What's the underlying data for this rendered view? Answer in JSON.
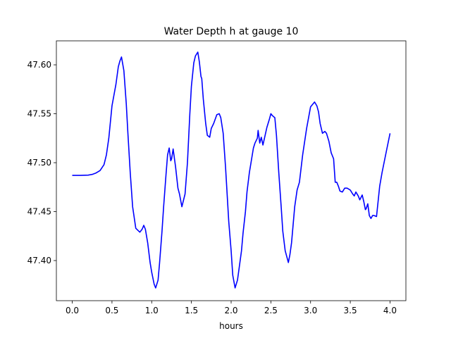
{
  "chart_data": {
    "type": "line",
    "title": "Water Depth h at gauge 10",
    "xlabel": "hours",
    "ylabel": "",
    "xlim": [
      -0.2,
      4.2
    ],
    "ylim": [
      47.359,
      47.6245
    ],
    "xticks": [
      0.0,
      0.5,
      1.0,
      1.5,
      2.0,
      2.5,
      3.0,
      3.5,
      4.0
    ],
    "xtick_labels": [
      "0.0",
      "0.5",
      "1.0",
      "1.5",
      "2.0",
      "2.5",
      "3.0",
      "3.5",
      "4.0"
    ],
    "yticks": [
      47.4,
      47.45,
      47.5,
      47.55,
      47.6
    ],
    "ytick_labels": [
      "47.40",
      "47.45",
      "47.50",
      "47.55",
      "47.60"
    ],
    "grid": false,
    "series": [
      {
        "name": "h",
        "color": "#0000ff",
        "x": [
          0,
          0.1,
          0.2,
          0.25,
          0.3,
          0.35,
          0.4,
          0.43,
          0.46,
          0.5,
          0.55,
          0.58,
          0.6,
          0.62,
          0.65,
          0.68,
          0.7,
          0.73,
          0.76,
          0.8,
          0.85,
          0.88,
          0.9,
          0.92,
          0.95,
          0.98,
          1.0,
          1.03,
          1.05,
          1.08,
          1.1,
          1.13,
          1.15,
          1.18,
          1.2,
          1.22,
          1.24,
          1.25,
          1.27,
          1.3,
          1.33,
          1.35,
          1.38,
          1.42,
          1.45,
          1.48,
          1.5,
          1.53,
          1.55,
          1.58,
          1.6,
          1.62,
          1.63,
          1.65,
          1.68,
          1.7,
          1.73,
          1.75,
          1.78,
          1.82,
          1.85,
          1.87,
          1.9,
          1.93,
          1.97,
          2.0,
          2.02,
          2.05,
          2.08,
          2.1,
          2.13,
          2.15,
          2.18,
          2.2,
          2.23,
          2.25,
          2.28,
          2.3,
          2.33,
          2.34,
          2.36,
          2.38,
          2.4,
          2.42,
          2.45,
          2.48,
          2.5,
          2.52,
          2.55,
          2.57,
          2.6,
          2.63,
          2.65,
          2.68,
          2.72,
          2.74,
          2.76,
          2.8,
          2.83,
          2.86,
          2.9,
          2.95,
          3.0,
          3.05,
          3.08,
          3.1,
          3.12,
          3.15,
          3.18,
          3.2,
          3.23,
          3.26,
          3.29,
          3.31,
          3.33,
          3.35,
          3.37,
          3.4,
          3.43,
          3.46,
          3.5,
          3.53,
          3.55,
          3.57,
          3.6,
          3.62,
          3.65,
          3.67,
          3.69,
          3.7,
          3.72,
          3.74,
          3.76,
          3.78,
          3.8,
          3.83,
          3.85,
          3.87,
          3.9,
          3.95,
          4.0
        ],
        "y": [
          47.487,
          47.487,
          47.4873,
          47.488,
          47.4895,
          47.492,
          47.498,
          47.508,
          47.525,
          47.558,
          47.58,
          47.598,
          47.604,
          47.608,
          47.594,
          47.56,
          47.53,
          47.49,
          47.455,
          47.433,
          47.429,
          47.432,
          47.436,
          47.432,
          47.418,
          47.398,
          47.388,
          47.376,
          47.372,
          47.38,
          47.398,
          47.43,
          47.455,
          47.488,
          47.508,
          47.515,
          47.502,
          47.504,
          47.514,
          47.496,
          47.474,
          47.468,
          47.455,
          47.468,
          47.5,
          47.55,
          47.578,
          47.602,
          47.609,
          47.613,
          47.603,
          47.588,
          47.586,
          47.565,
          47.54,
          47.528,
          47.526,
          47.535,
          47.54,
          47.549,
          47.55,
          47.546,
          47.53,
          47.495,
          47.44,
          47.41,
          47.385,
          47.372,
          47.38,
          47.392,
          47.41,
          47.428,
          47.45,
          47.47,
          47.49,
          47.5,
          47.515,
          47.52,
          47.525,
          47.533,
          47.52,
          47.526,
          47.518,
          47.525,
          47.536,
          47.544,
          47.55,
          47.548,
          47.546,
          47.528,
          47.49,
          47.455,
          47.43,
          47.41,
          47.398,
          47.406,
          47.418,
          47.455,
          47.472,
          47.48,
          47.508,
          47.535,
          47.557,
          47.562,
          47.558,
          47.552,
          47.54,
          47.53,
          47.532,
          47.53,
          47.522,
          47.51,
          47.504,
          47.48,
          47.48,
          47.476,
          47.471,
          47.47,
          47.474,
          47.474,
          47.472,
          47.468,
          47.466,
          47.47,
          47.466,
          47.462,
          47.467,
          47.46,
          47.452,
          47.453,
          47.458,
          47.446,
          47.443,
          47.446,
          47.446,
          47.445,
          47.46,
          47.476,
          47.49,
          47.51,
          47.53
        ]
      }
    ]
  }
}
